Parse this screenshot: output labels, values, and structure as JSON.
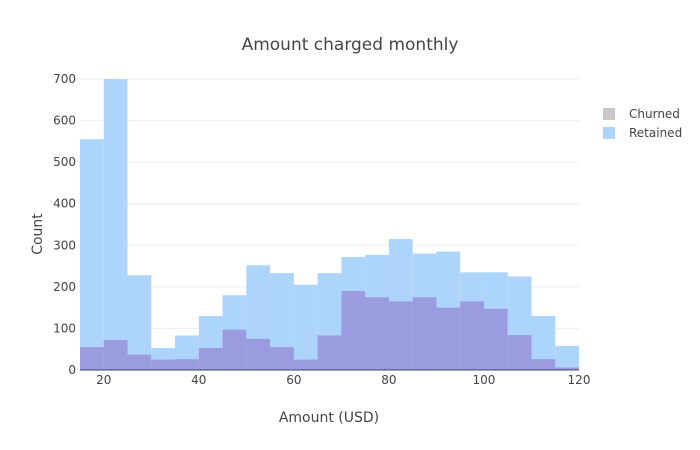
{
  "chart_data": {
    "type": "bar",
    "subtype": "overlaid-histogram",
    "title": "Amount charged monthly",
    "xlabel": "Amount (USD)",
    "ylabel": "Count",
    "xlim": [
      15,
      120
    ],
    "ylim": [
      0,
      700
    ],
    "bin_width": 5,
    "x_ticks": [
      20,
      40,
      60,
      80,
      100,
      120
    ],
    "y_ticks": [
      0,
      100,
      200,
      300,
      400,
      500,
      600,
      700
    ],
    "grid": true,
    "legend_position": "top-right",
    "bins_start": [
      15,
      20,
      25,
      30,
      35,
      40,
      45,
      50,
      55,
      60,
      65,
      70,
      75,
      80,
      85,
      90,
      95,
      100,
      105,
      110,
      115
    ],
    "series": [
      {
        "name": "Churned",
        "color": "#9b9bdf",
        "legend_color": "#c8c6c9",
        "values": [
          55,
          72,
          37,
          25,
          26,
          53,
          97,
          75,
          55,
          25,
          83,
          190,
          175,
          165,
          175,
          150,
          165,
          147,
          84,
          26,
          6
        ]
      },
      {
        "name": "Retained",
        "color": "#add5fc",
        "legend_color": "#add5fc",
        "values": [
          555,
          700,
          228,
          53,
          83,
          130,
          180,
          252,
          233,
          205,
          233,
          272,
          277,
          315,
          280,
          285,
          235,
          235,
          225,
          130,
          58
        ]
      }
    ]
  }
}
